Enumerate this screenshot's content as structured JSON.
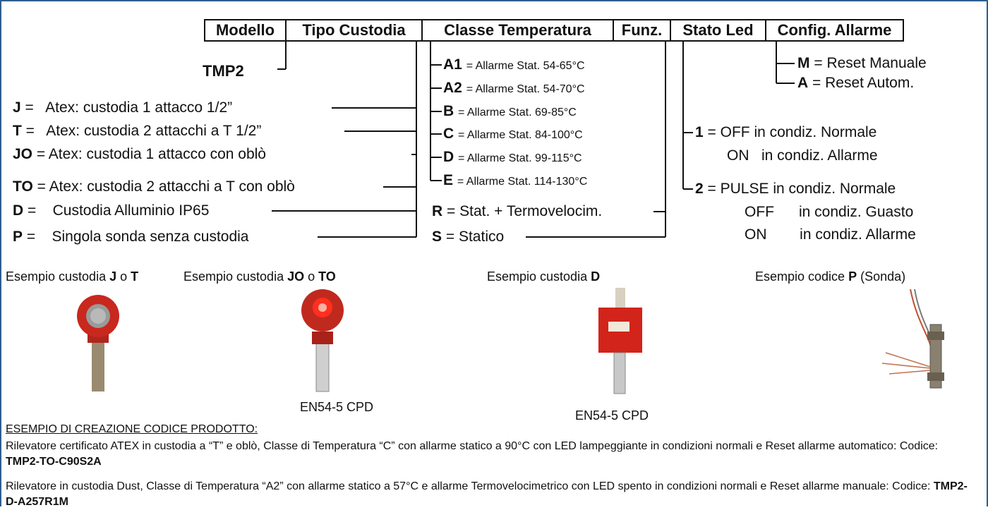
{
  "header": {
    "columns": [
      "Modello",
      "Tipo Custodia",
      "Classe Temperatura",
      "Funz.",
      "Stato Led",
      "Config. Allarme"
    ]
  },
  "model": "TMP2",
  "housing": {
    "options": [
      {
        "code": "J",
        "text": "=   Atex: custodia 1 attacco 1/2”"
      },
      {
        "code": "T",
        "text": "=   Atex: custodia 2 attacchi a T 1/2”"
      },
      {
        "code": "JO",
        "text": "= Atex: custodia 1 attacco con oblò"
      },
      {
        "code": "TO",
        "text": "= Atex: custodia 2 attacchi a T con oblò"
      },
      {
        "code": "D",
        "text": "=    Custodia Alluminio IP65"
      },
      {
        "code": "P",
        "text": "=    Singola sonda senza custodia"
      }
    ]
  },
  "temperature_class": {
    "options": [
      {
        "code": "A1",
        "text": "= Allarme Stat. 54-65°C"
      },
      {
        "code": "A2",
        "text": "= Allarme Stat. 54-70°C"
      },
      {
        "code": "B",
        "text": "= Allarme Stat. 69-85°C"
      },
      {
        "code": "C",
        "text": "= Allarme Stat. 84-100°C"
      },
      {
        "code": "D",
        "text": "= Allarme Stat. 99-115°C"
      },
      {
        "code": "E",
        "text": "= Allarme Stat. 114-130°C"
      }
    ]
  },
  "function": {
    "options": [
      {
        "code": "R",
        "text": "= Stat. + Termovelocim."
      },
      {
        "code": "S",
        "text": "= Statico"
      }
    ]
  },
  "led_state": {
    "options": [
      {
        "code": "1",
        "lines": [
          "= OFF in condiz. Normale",
          "ON   in condiz. Allarme"
        ]
      },
      {
        "code": "2",
        "lines": [
          "= PULSE in condiz. Normale",
          "OFF      in condiz. Guasto",
          "ON        in condiz. Allarme"
        ]
      }
    ]
  },
  "alarm_config": {
    "options": [
      {
        "code": "M",
        "text": "= Reset Manuale"
      },
      {
        "code": "A",
        "text": "= Reset Autom."
      }
    ]
  },
  "examples": [
    {
      "caption": [
        {
          "text": "Esempio custodia "
        },
        {
          "text": "J",
          "bold": true
        },
        {
          "text": " o "
        },
        {
          "text": "T",
          "bold": true
        }
      ]
    },
    {
      "caption": [
        {
          "text": "Esempio custodia "
        },
        {
          "text": "JO",
          "bold": true
        },
        {
          "text": " o "
        },
        {
          "text": "TO",
          "bold": true
        }
      ],
      "cert": "EN54-5 CPD"
    },
    {
      "caption": [
        {
          "text": "Esempio custodia "
        },
        {
          "text": "D",
          "bold": true
        }
      ],
      "cert": "EN54-5 CPD"
    },
    {
      "caption": [
        {
          "text": "Esempio codice "
        },
        {
          "text": "P",
          "bold": true
        },
        {
          "text": " (Sonda)"
        }
      ]
    }
  ],
  "product_code_examples": {
    "title": "ESEMPIO DI CREAZIONE CODICE PRODOTTO:",
    "items": [
      {
        "text": "Rilevatore certificato ATEX in custodia a “T” e oblò, Classe di Temperatura “C” con allarme statico a 90°C con LED lampeggiante in condizioni normali e Reset allarme automatico: Codice: ",
        "code": "TMP2-TO-C90S2A"
      },
      {
        "text": "Rilevatore in custodia Dust, Classe di Temperatura “A2” con allarme statico a 57°C e allarme Termovelocimetrico con LED spento in condizioni normali e Reset allarme manuale: Codice: ",
        "code": "TMP2-D-A257R1M"
      }
    ]
  }
}
